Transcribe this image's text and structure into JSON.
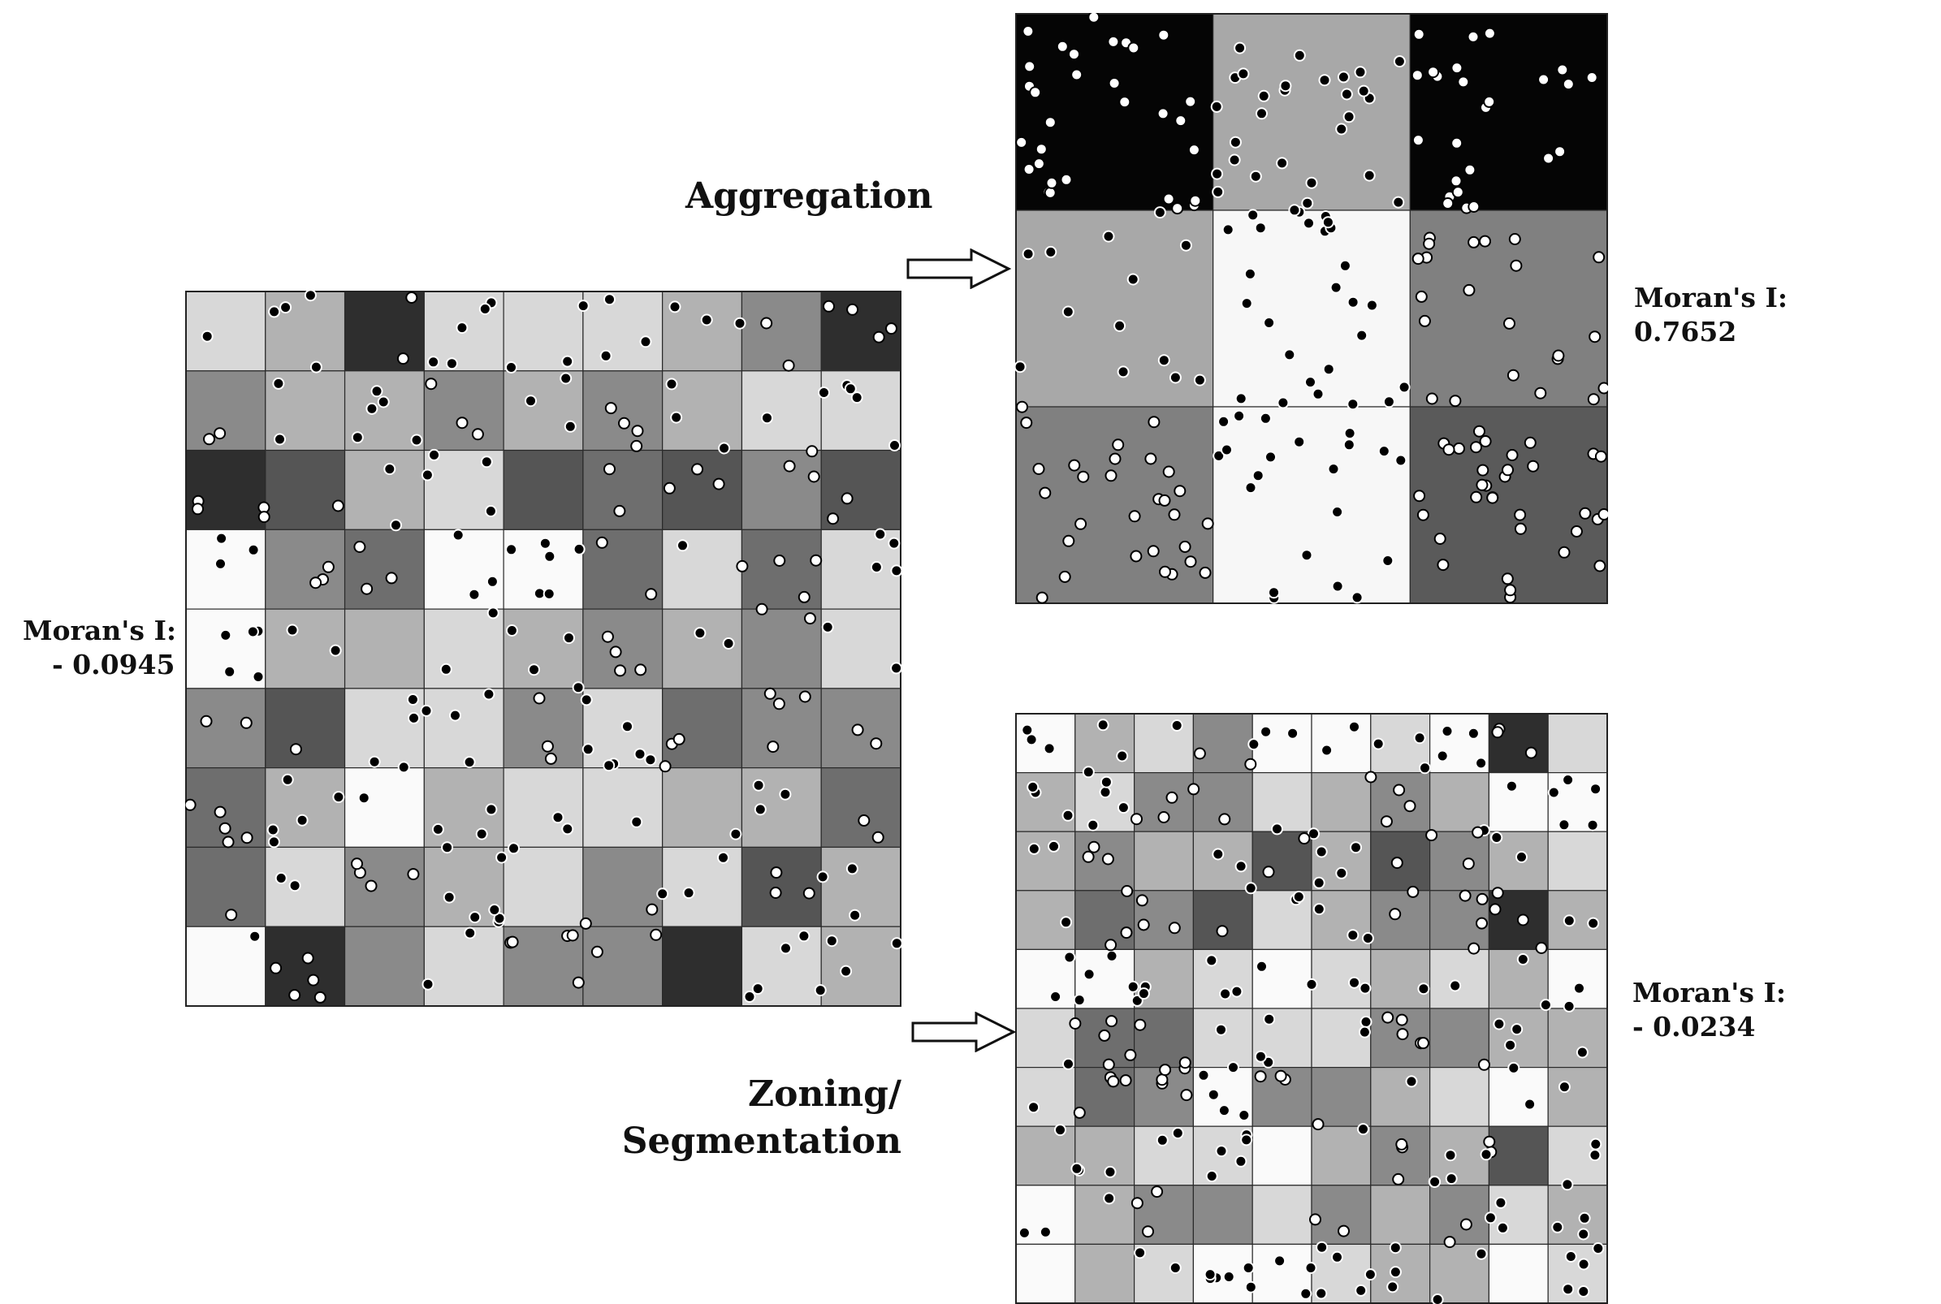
{
  "labels": {
    "aggregation": "Aggregation",
    "zoning_line1": "Zoning/",
    "zoning_line2": "Segmentation"
  },
  "original": {
    "moran_label": "Moran's I:",
    "moran_value": "- 0.0945",
    "rows": 9,
    "cols": 9,
    "shades": [
      "#d8d8d8",
      "#b2b2b2",
      "#2e2e2e",
      "#d8d8d8",
      "#d8d8d8",
      "#d8d8d8",
      "#b2b2b2",
      "#8a8a8a",
      "#2e2e2e",
      "#8a8a8a",
      "#b2b2b2",
      "#b2b2b2",
      "#8a8a8a",
      "#b2b2b2",
      "#8a8a8a",
      "#b2b2b2",
      "#d8d8d8",
      "#d8d8d8",
      "#2e2e2e",
      "#555555",
      "#b2b2b2",
      "#d8d8d8",
      "#555555",
      "#6e6e6e",
      "#555555",
      "#8a8a8a",
      "#555555",
      "#fafafa",
      "#8a8a8a",
      "#6e6e6e",
      "#fafafa",
      "#fafafa",
      "#6e6e6e",
      "#d8d8d8",
      "#6e6e6e",
      "#d8d8d8",
      "#fafafa",
      "#b2b2b2",
      "#b2b2b2",
      "#d8d8d8",
      "#b2b2b2",
      "#8a8a8a",
      "#b2b2b2",
      "#8a8a8a",
      "#d8d8d8",
      "#8a8a8a",
      "#555555",
      "#d8d8d8",
      "#d8d8d8",
      "#8a8a8a",
      "#d8d8d8",
      "#6e6e6e",
      "#8a8a8a",
      "#8a8a8a",
      "#6e6e6e",
      "#b2b2b2",
      "#fafafa",
      "#b2b2b2",
      "#d8d8d8",
      "#d8d8d8",
      "#b2b2b2",
      "#b2b2b2",
      "#6e6e6e",
      "#6e6e6e",
      "#d8d8d8",
      "#8a8a8a",
      "#b2b2b2",
      "#d8d8d8",
      "#8a8a8a",
      "#d8d8d8",
      "#555555",
      "#b2b2b2",
      "#fafafa",
      "#2e2e2e",
      "#8a8a8a",
      "#d8d8d8",
      "#8a8a8a",
      "#8a8a8a",
      "#2e2e2e",
      "#d8d8d8",
      "#b2b2b2"
    ]
  },
  "aggregated": {
    "moran_label": "Moran's I:",
    "moran_value": "0.7652",
    "rows": 3,
    "cols": 3,
    "shades": [
      "#050505",
      "#a8a8a8",
      "#050505",
      "#a8a8a8",
      "#f7f7f7",
      "#808080",
      "#808080",
      "#f7f7f7",
      "#5a5a5a"
    ]
  },
  "zoned": {
    "moran_label": "Moran's I:",
    "moran_value": "- 0.0234",
    "rows": 10,
    "cols": 10,
    "shades": [
      "#fafafa",
      "#b2b2b2",
      "#d8d8d8",
      "#8a8a8a",
      "#fafafa",
      "#fafafa",
      "#d8d8d8",
      "#fafafa",
      "#2e2e2e",
      "#d8d8d8",
      "#b2b2b2",
      "#d8d8d8",
      "#8a8a8a",
      "#8a8a8a",
      "#d8d8d8",
      "#b2b2b2",
      "#8a8a8a",
      "#b2b2b2",
      "#fafafa",
      "#fafafa",
      "#b2b2b2",
      "#8a8a8a",
      "#b2b2b2",
      "#b2b2b2",
      "#555555",
      "#b2b2b2",
      "#555555",
      "#8a8a8a",
      "#b2b2b2",
      "#d8d8d8",
      "#b2b2b2",
      "#6e6e6e",
      "#8a8a8a",
      "#555555",
      "#d8d8d8",
      "#b2b2b2",
      "#8a8a8a",
      "#8a8a8a",
      "#2e2e2e",
      "#b2b2b2",
      "#fafafa",
      "#fafafa",
      "#b2b2b2",
      "#d8d8d8",
      "#fafafa",
      "#d8d8d8",
      "#b2b2b2",
      "#d8d8d8",
      "#b2b2b2",
      "#fafafa",
      "#d8d8d8",
      "#6e6e6e",
      "#6e6e6e",
      "#d8d8d8",
      "#d8d8d8",
      "#d8d8d8",
      "#8a8a8a",
      "#8a8a8a",
      "#b2b2b2",
      "#b2b2b2",
      "#d8d8d8",
      "#6e6e6e",
      "#8a8a8a",
      "#fafafa",
      "#8a8a8a",
      "#8a8a8a",
      "#b2b2b2",
      "#d8d8d8",
      "#fafafa",
      "#b2b2b2",
      "#b2b2b2",
      "#b2b2b2",
      "#d8d8d8",
      "#d8d8d8",
      "#fafafa",
      "#b2b2b2",
      "#8a8a8a",
      "#b2b2b2",
      "#555555",
      "#d8d8d8",
      "#fafafa",
      "#b2b2b2",
      "#8a8a8a",
      "#8a8a8a",
      "#d8d8d8",
      "#8a8a8a",
      "#b2b2b2",
      "#8a8a8a",
      "#d8d8d8",
      "#b2b2b2",
      "#fafafa",
      "#b2b2b2",
      "#d8d8d8",
      "#fafafa",
      "#fafafa",
      "#d8d8d8",
      "#b2b2b2",
      "#b2b2b2",
      "#fafafa",
      "#d8d8d8"
    ]
  },
  "points": {
    "count_original": 230,
    "count_aggregated": 230,
    "count_zoned": 230
  }
}
